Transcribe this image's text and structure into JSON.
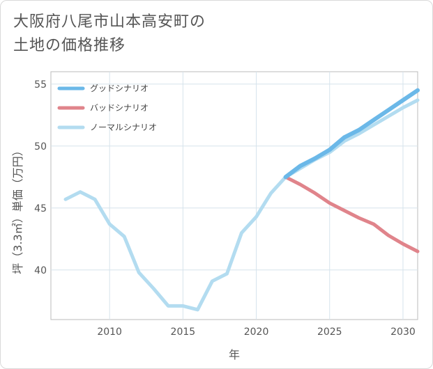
{
  "chart_data": {
    "type": "line",
    "title_lines": [
      "大阪府八尾市山本高安町の",
      "土地の価格推移"
    ],
    "xlabel": "年",
    "ylabel": "坪（3.3㎡）単価（万円）",
    "xlim": [
      2006,
      2031
    ],
    "ylim": [
      36,
      56
    ],
    "xticks": [
      2010,
      2015,
      2020,
      2025,
      2030
    ],
    "yticks": [
      40,
      45,
      50,
      55
    ],
    "grid": true,
    "legend_position": "top-left",
    "series": [
      {
        "name": "グッドシナリオ",
        "color": "#6bb8e8",
        "x": [
          2022,
          2023,
          2024,
          2025,
          2026,
          2027,
          2028,
          2029,
          2030,
          2031
        ],
        "y": [
          47.5,
          48.4,
          49.0,
          49.7,
          50.7,
          51.3,
          52.1,
          52.9,
          53.7,
          54.5
        ]
      },
      {
        "name": "バッドシナリオ",
        "color": "#e0848b",
        "x": [
          2022,
          2023,
          2024,
          2025,
          2026,
          2027,
          2028,
          2029,
          2030,
          2031
        ],
        "y": [
          47.5,
          46.9,
          46.2,
          45.4,
          44.8,
          44.2,
          43.7,
          42.8,
          42.1,
          41.5
        ]
      },
      {
        "name": "ノーマルシナリオ",
        "color": "#b3dcf0",
        "x": [
          2007,
          2008,
          2009,
          2010,
          2011,
          2012,
          2013,
          2014,
          2015,
          2016,
          2017,
          2018,
          2019,
          2020,
          2021,
          2022,
          2023,
          2024,
          2025,
          2026,
          2027,
          2028,
          2029,
          2030,
          2031
        ],
        "y": [
          45.7,
          46.3,
          45.7,
          43.7,
          42.7,
          39.8,
          38.5,
          37.1,
          37.1,
          36.8,
          39.1,
          39.7,
          43.0,
          44.3,
          46.2,
          47.5,
          48.2,
          48.9,
          49.5,
          50.4,
          51.0,
          51.7,
          52.4,
          53.1,
          53.7
        ]
      }
    ]
  }
}
